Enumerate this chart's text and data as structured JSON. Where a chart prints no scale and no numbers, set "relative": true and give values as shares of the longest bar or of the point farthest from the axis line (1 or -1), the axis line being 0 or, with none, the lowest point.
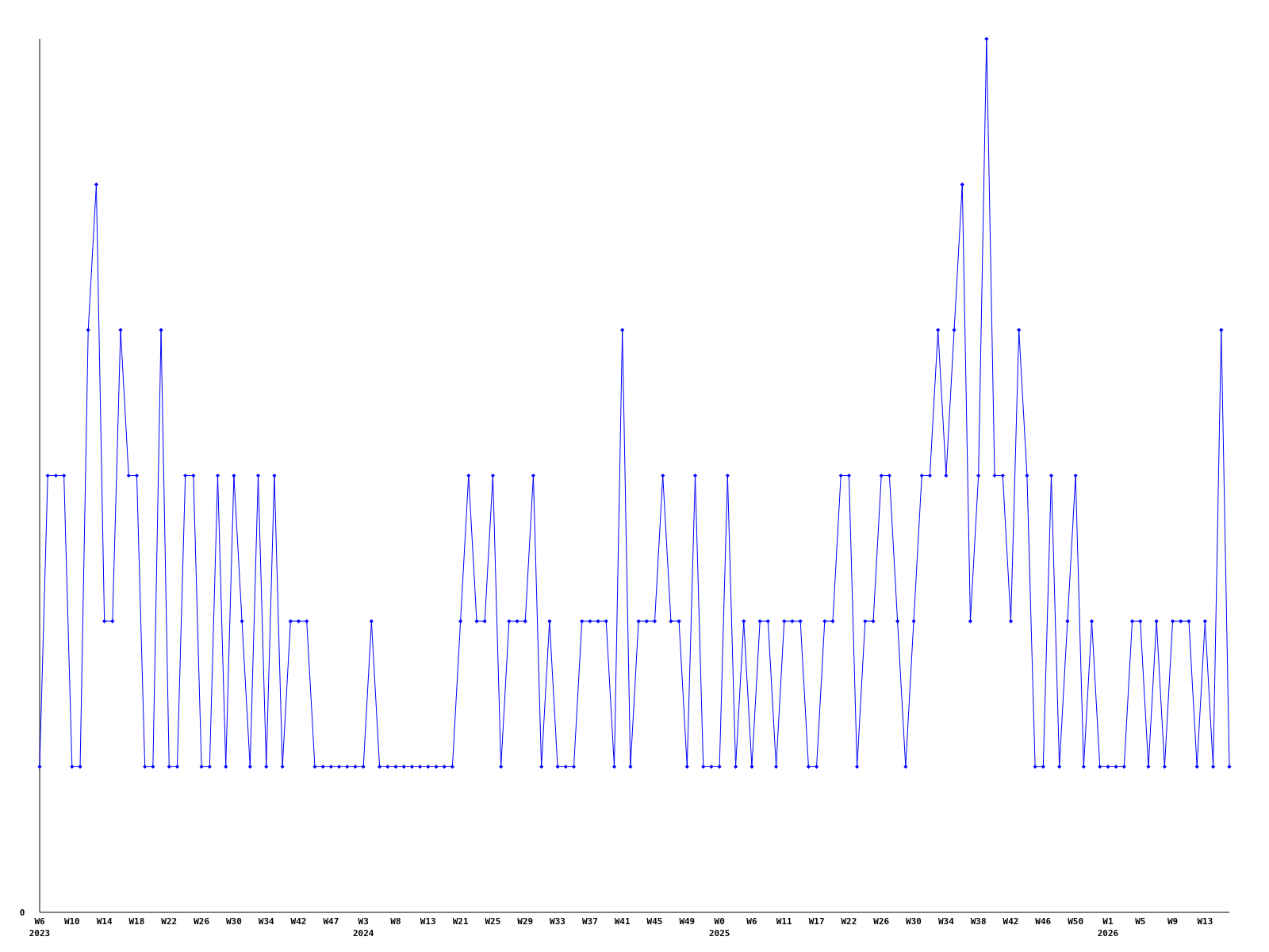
{
  "chart_data": {
    "type": "line",
    "relative": true,
    "color": "#0000ff",
    "marker": "diamond",
    "annotations": [
      "0"
    ],
    "categories": [
      "W6\n2023",
      null,
      null,
      null,
      "W10",
      null,
      null,
      null,
      "W14",
      null,
      null,
      null,
      "W18",
      null,
      null,
      null,
      "W22",
      null,
      null,
      null,
      "W26",
      null,
      null,
      null,
      "W30",
      null,
      null,
      null,
      "W34",
      null,
      null,
      null,
      "W42",
      null,
      null,
      null,
      "W47",
      null,
      null,
      null,
      "W3\n2024",
      null,
      null,
      null,
      "W8",
      null,
      null,
      null,
      "W13",
      null,
      null,
      null,
      "W21",
      null,
      null,
      null,
      "W25",
      null,
      null,
      null,
      "W29",
      null,
      null,
      null,
      "W33",
      null,
      null,
      null,
      "W37",
      null,
      null,
      null,
      "W41",
      null,
      null,
      null,
      "W45",
      null,
      null,
      null,
      "W49",
      null,
      null,
      null,
      "W0\n2025",
      null,
      null,
      null,
      "W6",
      null,
      null,
      null,
      "W11",
      null,
      null,
      null,
      "W17",
      null,
      null,
      null,
      "W22",
      null,
      null,
      null,
      "W26",
      null,
      null,
      null,
      "W30",
      null,
      null,
      null,
      "W34",
      null,
      null,
      null,
      "W38",
      null,
      null,
      null,
      "W42",
      null,
      null,
      null,
      "W46",
      null,
      null,
      null,
      "W50",
      null,
      null,
      null,
      "W1\n2026",
      null,
      null,
      null,
      "W5",
      null,
      null,
      null,
      "W9",
      null,
      null,
      null,
      "W13",
      null,
      null,
      null
    ],
    "values": [
      0.1667,
      0.5,
      0.5,
      0.5,
      0.1667,
      0.1667,
      0.6667,
      0.8333,
      0.3333,
      0.3333,
      0.6667,
      0.5,
      0.5,
      0.1667,
      0.1667,
      0.6667,
      0.1667,
      0.1667,
      0.5,
      0.5,
      0.1667,
      0.1667,
      0.5,
      0.1667,
      0.5,
      0.3333,
      0.1667,
      0.5,
      0.1667,
      0.5,
      0.1667,
      0.3333,
      0.3333,
      0.3333,
      0.1667,
      0.1667,
      0.1667,
      0.1667,
      0.1667,
      0.1667,
      0.1667,
      0.3333,
      0.1667,
      0.1667,
      0.1667,
      0.1667,
      0.1667,
      0.1667,
      0.1667,
      0.1667,
      0.1667,
      0.1667,
      0.3333,
      0.5,
      0.3333,
      0.3333,
      0.5,
      0.1667,
      0.3333,
      0.3333,
      0.3333,
      0.5,
      0.1667,
      0.3333,
      0.1667,
      0.1667,
      0.1667,
      0.3333,
      0.3333,
      0.3333,
      0.3333,
      0.1667,
      0.6667,
      0.1667,
      0.3333,
      0.3333,
      0.3333,
      0.5,
      0.3333,
      0.3333,
      0.1667,
      0.5,
      0.1667,
      0.1667,
      0.1667,
      0.5,
      0.1667,
      0.3333,
      0.1667,
      0.3333,
      0.3333,
      0.1667,
      0.3333,
      0.3333,
      0.3333,
      0.1667,
      0.1667,
      0.3333,
      0.3333,
      0.5,
      0.5,
      0.1667,
      0.3333,
      0.3333,
      0.5,
      0.5,
      0.3333,
      0.1667,
      0.3333,
      0.5,
      0.5,
      0.6667,
      0.5,
      0.6667,
      0.8333,
      0.3333,
      0.5,
      1,
      0.5,
      0.5,
      0.3333,
      0.6667,
      0.5,
      0.1667,
      0.1667,
      0.5,
      0.1667,
      0.3333,
      0.5,
      0.1667,
      0.3333,
      0.1667,
      0.1667,
      0.1667,
      0.1667,
      0.3333,
      0.3333,
      0.1667,
      0.3333,
      0.1667,
      0.3333,
      0.3333,
      0.3333,
      0.1667,
      0.3333,
      0.1667,
      0.6667,
      0.1667
    ]
  }
}
